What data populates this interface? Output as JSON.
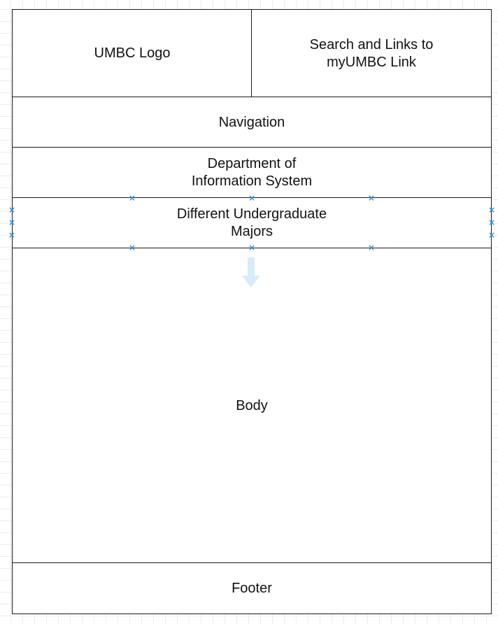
{
  "diagram": {
    "boxes": {
      "logo": "UMBC Logo",
      "search": "Search and Links to\nmyUMBC Link",
      "navigation": "Navigation",
      "department": "Department of\nInformation System",
      "majors": "Different Undergraduate\nMajors",
      "body": "Body",
      "footer": "Footer"
    },
    "colors": {
      "border": "#1a1a1a",
      "handle": "#2f8fd8",
      "arrow": "#d6ecfb",
      "grid": "#ededed"
    },
    "selected_box": "majors"
  }
}
